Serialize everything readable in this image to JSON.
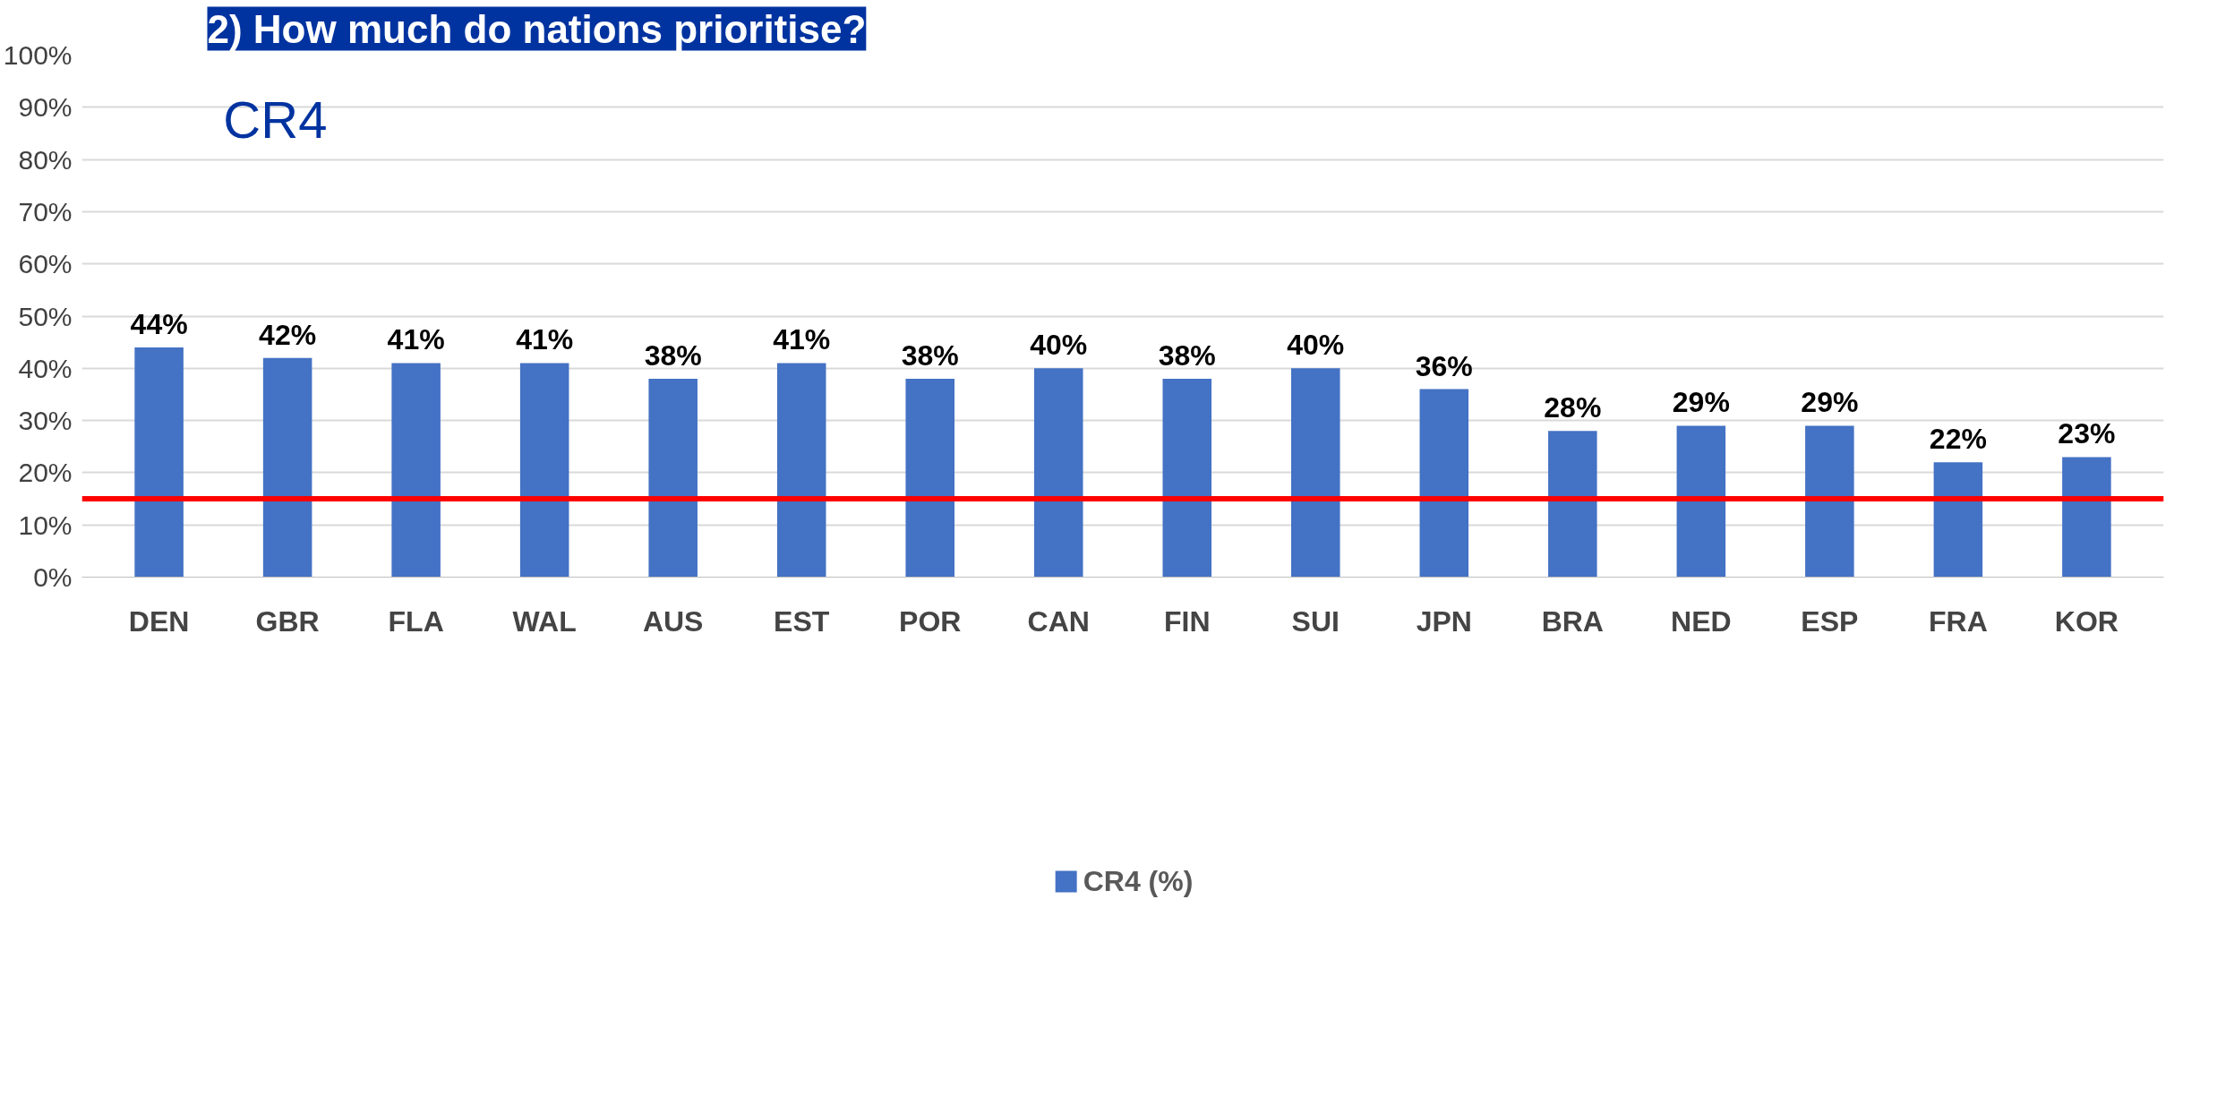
{
  "chart_data": {
    "type": "bar",
    "title": "2) How much do nations prioritise?",
    "categories": [
      "DEN",
      "GBR",
      "FLA",
      "WAL",
      "AUS",
      "EST",
      "POR",
      "CAN",
      "FIN",
      "SUI",
      "JPN",
      "BRA",
      "NED",
      "ESP",
      "FRA",
      "KOR"
    ],
    "series": [
      {
        "name": "CR4 (%)",
        "color": "#4472c4",
        "values": [
          44,
          42,
          41,
          41,
          38,
          41,
          38,
          40,
          38,
          40,
          36,
          28,
          29,
          29,
          22,
          23
        ],
        "value_labels": [
          "44%",
          "42%",
          "41%",
          "41%",
          "38%",
          "41%",
          "38%",
          "40%",
          "38%",
          "40%",
          "36%",
          "28%",
          "29%",
          "29%",
          "22%",
          "23%"
        ]
      }
    ],
    "ylim": [
      0,
      100
    ],
    "yticks": [
      {
        "value": 0,
        "label": "0%"
      },
      {
        "value": 10,
        "label": "10%"
      },
      {
        "value": 20,
        "label": "20%"
      },
      {
        "value": 30,
        "label": "30%"
      },
      {
        "value": 40,
        "label": "40%"
      },
      {
        "value": 50,
        "label": "50%"
      },
      {
        "value": 60,
        "label": "60%"
      },
      {
        "value": 70,
        "label": "70%"
      },
      {
        "value": 80,
        "label": "80%"
      },
      {
        "value": 90,
        "label": "90%"
      },
      {
        "value": 100,
        "label": "100%"
      }
    ],
    "ref_lines": [
      {
        "axis": "y",
        "value": 15,
        "label": null,
        "color": "#ff0000"
      }
    ],
    "annotations": [
      "CR4"
    ],
    "grid": "y",
    "legend": "bottom"
  }
}
